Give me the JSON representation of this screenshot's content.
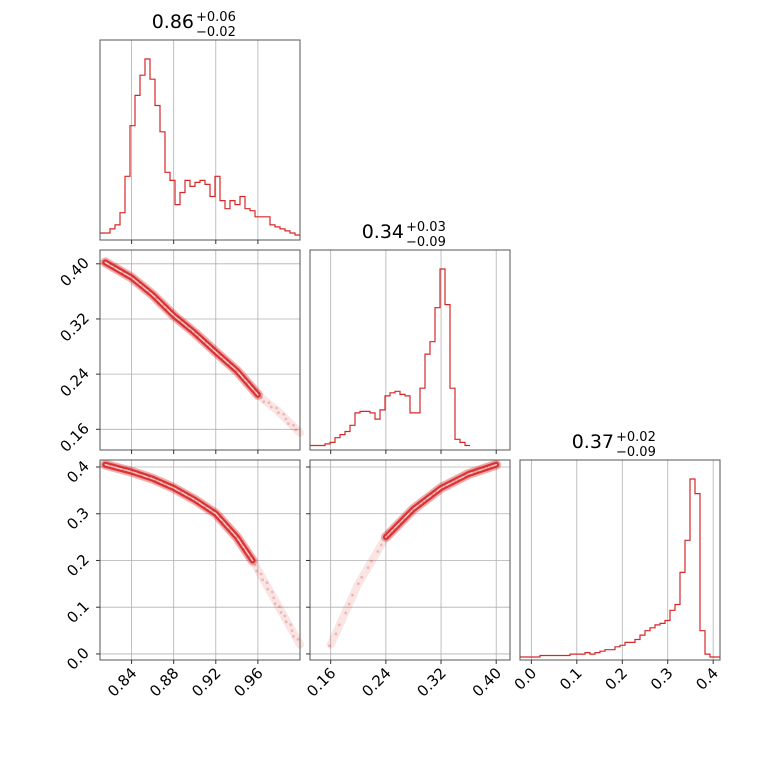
{
  "colors": {
    "series": "#d62728",
    "grid": "#b0b0b0",
    "frame": "#555555",
    "background": "#ffffff"
  },
  "chart_data": {
    "type": "corner",
    "parameters": [
      {
        "title": {
          "value": "0.86",
          "plus": "+0.06",
          "minus": "−0.02"
        },
        "range": [
          0.81,
          1.0
        ],
        "ticks": [
          0.84,
          0.88,
          0.92,
          0.96
        ],
        "tick_labels": [
          "0.84",
          "0.88",
          "0.92",
          "0.96"
        ],
        "histogram": {
          "bin_edges_start": 0.81,
          "bin_width": 0.00475,
          "counts": [
            2,
            2,
            4,
            6,
            12,
            30,
            55,
            70,
            80,
            88,
            78,
            65,
            52,
            32,
            28,
            16,
            22,
            28,
            25,
            27,
            28,
            26,
            20,
            30,
            18,
            14,
            18,
            16,
            20,
            14,
            13,
            10,
            10,
            10,
            6,
            5,
            4,
            3,
            2,
            1
          ]
        }
      },
      {
        "title": {
          "value": "0.34",
          "plus": "+0.03",
          "minus": "−0.09"
        },
        "range": [
          0.13,
          0.42
        ],
        "ticks": [
          0.16,
          0.24,
          0.32,
          0.4
        ],
        "tick_labels": [
          "0.16",
          "0.24",
          "0.32",
          "0.40"
        ],
        "histogram": {
          "bin_edges_start": 0.13,
          "bin_width": 0.00725,
          "counts": [
            1,
            1,
            1,
            2,
            3,
            6,
            8,
            10,
            14,
            22,
            23,
            23,
            22,
            18,
            24,
            33,
            35,
            36,
            34,
            33,
            22,
            22,
            38,
            60,
            68,
            90,
            115,
            92,
            38,
            5,
            3,
            1
          ]
        }
      },
      {
        "title": {
          "value": "0.37",
          "plus": "+0.02",
          "minus": "−0.09"
        },
        "range": [
          -0.025,
          0.415
        ],
        "ticks": [
          0.0,
          0.1,
          0.2,
          0.3,
          0.4
        ],
        "tick_labels": [
          "0.0",
          "0.1",
          "0.2",
          "0.3",
          "0.4"
        ],
        "histogram": {
          "bin_edges_start": -0.025,
          "bin_width": 0.011,
          "counts": [
            0,
            0,
            0,
            0,
            1,
            1,
            1,
            1,
            1,
            1,
            2,
            2,
            2,
            3,
            2,
            3,
            4,
            5,
            5,
            7,
            8,
            10,
            10,
            12,
            15,
            18,
            20,
            22,
            23,
            25,
            32,
            36,
            58,
            80,
            122,
            112,
            18,
            2,
            0,
            0
          ]
        }
      }
    ],
    "pairs": [
      {
        "x_param": 0,
        "y_param": 1,
        "curve": [
          [
            0.815,
            0.402
          ],
          [
            0.84,
            0.38
          ],
          [
            0.86,
            0.355
          ],
          [
            0.88,
            0.325
          ],
          [
            0.9,
            0.3
          ],
          [
            0.92,
            0.272
          ],
          [
            0.94,
            0.245
          ],
          [
            0.96,
            0.21
          ],
          [
            0.98,
            0.185
          ],
          [
            1.0,
            0.155
          ]
        ]
      },
      {
        "x_param": 0,
        "y_param": 2,
        "curve": [
          [
            0.815,
            0.405
          ],
          [
            0.84,
            0.39
          ],
          [
            0.86,
            0.375
          ],
          [
            0.88,
            0.355
          ],
          [
            0.9,
            0.33
          ],
          [
            0.92,
            0.3
          ],
          [
            0.94,
            0.25
          ],
          [
            0.955,
            0.2
          ],
          [
            0.97,
            0.14
          ],
          [
            0.985,
            0.08
          ],
          [
            1.0,
            0.02
          ]
        ]
      },
      {
        "x_param": 1,
        "y_param": 2,
        "curve": [
          [
            0.16,
            0.02
          ],
          [
            0.2,
            0.15
          ],
          [
            0.24,
            0.25
          ],
          [
            0.28,
            0.31
          ],
          [
            0.32,
            0.355
          ],
          [
            0.36,
            0.385
          ],
          [
            0.4,
            0.405
          ]
        ]
      }
    ],
    "y_axes": [
      {
        "row": 1,
        "param": 1,
        "range": [
          0.13,
          0.42
        ],
        "ticks": [
          0.16,
          0.24,
          0.32,
          0.4
        ],
        "tick_labels": [
          "0.16",
          "0.24",
          "0.32",
          "0.40"
        ]
      },
      {
        "row": 2,
        "param": 2,
        "range": [
          -0.013,
          0.415
        ],
        "ticks": [
          0.0,
          0.1,
          0.2,
          0.3,
          0.4
        ],
        "tick_labels": [
          "0.0",
          "0.1",
          "0.2",
          "0.3",
          "0.4"
        ]
      }
    ],
    "grid": true
  }
}
